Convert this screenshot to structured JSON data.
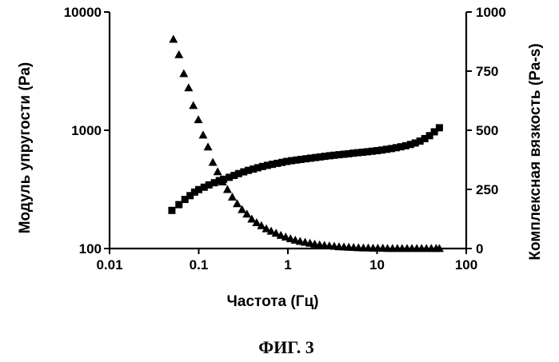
{
  "caption": "ФИГ. 3",
  "chart_data": {
    "type": "scatter",
    "xlabel": "Частота (Гц)",
    "ylabel_left": "Модуль упругости (Pa)",
    "ylabel_right": "Комплексная вязкость (Pa-s)",
    "x_scale": "log",
    "xlim": [
      0.01,
      100
    ],
    "y_left_scale": "log",
    "y_left_lim": [
      100,
      10000
    ],
    "y_right_scale": "linear",
    "y_right_lim": [
      0,
      1000
    ],
    "x_ticks": [
      "0.01",
      "0.1",
      "1",
      "10",
      "100"
    ],
    "y_left_ticks": [
      "100",
      "1000",
      "10000"
    ],
    "y_right_ticks": [
      "0",
      "250",
      "500",
      "750",
      "1000"
    ],
    "series": [
      {
        "marker": "square",
        "axis": "left",
        "x": [
          0.05,
          0.06,
          0.07,
          0.08,
          0.09,
          0.1,
          0.115,
          0.13,
          0.15,
          0.17,
          0.19,
          0.22,
          0.25,
          0.28,
          0.32,
          0.36,
          0.41,
          0.46,
          0.52,
          0.59,
          0.67,
          0.76,
          0.86,
          0.97,
          1.1,
          1.25,
          1.4,
          1.6,
          1.8,
          2.05,
          2.3,
          2.6,
          2.95,
          3.3,
          3.75,
          4.25,
          4.8,
          5.4,
          6.1,
          6.9,
          7.8,
          8.8,
          10,
          11.3,
          12.8,
          14.5,
          16.4,
          18.5,
          21,
          23.7,
          26.8,
          30.3,
          34.3,
          38.8,
          43.9,
          50
        ],
        "y": [
          210,
          235,
          260,
          280,
          300,
          315,
          330,
          345,
          360,
          375,
          385,
          400,
          415,
          430,
          445,
          458,
          470,
          482,
          494,
          505,
          515,
          525,
          535,
          545,
          553,
          560,
          567,
          574,
          581,
          588,
          595,
          602,
          609,
          615,
          621,
          627,
          633,
          640,
          646,
          652,
          658,
          665,
          672,
          680,
          690,
          700,
          712,
          725,
          740,
          758,
          780,
          810,
          850,
          900,
          970,
          1050
        ]
      },
      {
        "marker": "triangle",
        "axis": "right",
        "x": [
          0.052,
          0.06,
          0.068,
          0.077,
          0.087,
          0.099,
          0.112,
          0.127,
          0.144,
          0.163,
          0.185,
          0.21,
          0.238,
          0.27,
          0.306,
          0.347,
          0.393,
          0.446,
          0.505,
          0.573,
          0.649,
          0.736,
          0.834,
          0.945,
          1.07,
          1.21,
          1.37,
          1.56,
          1.77,
          2.0,
          2.27,
          2.57,
          2.92,
          3.31,
          3.75,
          4.25,
          4.82,
          5.46,
          6.19,
          7.02,
          7.96,
          9.02,
          10.2,
          11.6,
          13.1,
          14.9,
          16.9,
          19.1,
          21.7,
          24.6,
          27.9,
          31.6,
          35.8,
          40.6,
          46.0,
          50
        ],
        "y": [
          885,
          820,
          740,
          680,
          605,
          545,
          480,
          430,
          365,
          325,
          282,
          250,
          218,
          190,
          165,
          146,
          125,
          110,
          97,
          84,
          74,
          65,
          56,
          49,
          42,
          36,
          31,
          27,
          23,
          19,
          16,
          14,
          12,
          10,
          8,
          7,
          6,
          5,
          4,
          3,
          3,
          2,
          2,
          2,
          1,
          1,
          1,
          1,
          1,
          1,
          1,
          1,
          1,
          1,
          1,
          1
        ]
      }
    ]
  }
}
